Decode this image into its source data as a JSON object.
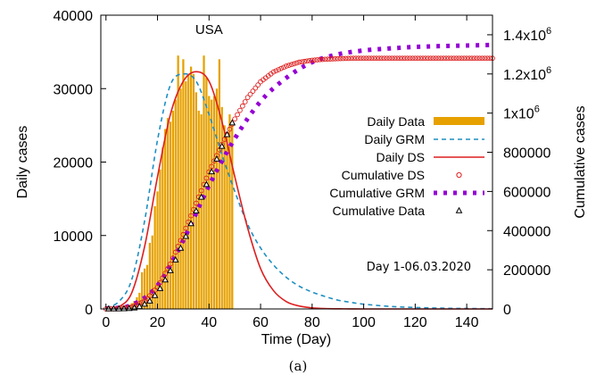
{
  "chart_data": {
    "type": "bar",
    "title": "USA",
    "annotation": "Day 1-06.03.2020",
    "caption": "(a)",
    "xlabel": "Time (Day)",
    "ylabel": "Daily cases",
    "y2label": "Cumulative cases",
    "xlim": [
      -2,
      150
    ],
    "ylim": [
      0,
      40000
    ],
    "y2lim": [
      0,
      1500000
    ],
    "x_ticks": [
      0,
      20,
      40,
      60,
      80,
      100,
      120,
      140
    ],
    "y_ticks": [
      0,
      10000,
      20000,
      30000,
      40000
    ],
    "y2_ticks": [
      {
        "value": 0,
        "label": "0"
      },
      {
        "value": 200000,
        "label": "200000"
      },
      {
        "value": 400000,
        "label": "400000"
      },
      {
        "value": 600000,
        "label": "600000"
      },
      {
        "value": 800000,
        "label": "800000"
      },
      {
        "value": 1000000,
        "label": "1x10",
        "exp": "6"
      },
      {
        "value": 1200000,
        "label": "1.2x10",
        "exp": "6"
      },
      {
        "value": 1400000,
        "label": "1.4x10",
        "exp": "6"
      }
    ],
    "grid": false,
    "legend_position": "center-right",
    "colors": {
      "daily_data": "#e6a100",
      "daily_grm": "#1f8fc2",
      "daily_ds": "#dd1f1f",
      "cumulative_ds": "#dd1f1f",
      "cumulative_grm": "#9400d3",
      "cumulative_data": "#000000"
    },
    "series": [
      {
        "name": "Daily Data",
        "axis": "left",
        "style": "bars",
        "x": [
          1,
          2,
          3,
          4,
          5,
          6,
          7,
          8,
          9,
          10,
          11,
          12,
          13,
          14,
          15,
          16,
          17,
          18,
          19,
          20,
          21,
          22,
          23,
          24,
          25,
          26,
          27,
          28,
          29,
          30,
          31,
          32,
          33,
          34,
          35,
          36,
          37,
          38,
          39,
          40,
          41,
          42,
          43,
          44,
          45,
          46,
          47,
          48,
          49
        ],
        "values": [
          50,
          80,
          100,
          120,
          150,
          200,
          300,
          400,
          500,
          800,
          1100,
          1600,
          2200,
          5000,
          5500,
          6000,
          9000,
          10000,
          14000,
          16000,
          19000,
          22000,
          24500,
          26000,
          25500,
          27000,
          28500,
          34500,
          30000,
          34000,
          31000,
          32000,
          33000,
          32000,
          29500,
          27000,
          26500,
          34500,
          31500,
          29000,
          28500,
          29000,
          30000,
          34000,
          27500,
          25000,
          24000,
          26500,
          25000
        ]
      },
      {
        "name": "Daily GRM",
        "axis": "left",
        "style": "dashed-line",
        "x": [
          0,
          5,
          10,
          15,
          20,
          25,
          30,
          35,
          40,
          45,
          50,
          55,
          60,
          65,
          70,
          75,
          80,
          85,
          90,
          95,
          100,
          110,
          120,
          130,
          140,
          150
        ],
        "values": [
          200,
          1000,
          4000,
          12000,
          23000,
          30500,
          32000,
          31000,
          26500,
          21000,
          16000,
          11500,
          8300,
          6000,
          4300,
          3100,
          2300,
          1700,
          1200,
          900,
          650,
          350,
          200,
          110,
          60,
          30
        ]
      },
      {
        "name": "Daily DS",
        "axis": "left",
        "style": "line",
        "x": [
          0,
          5,
          10,
          15,
          20,
          25,
          30,
          35,
          40,
          45,
          50,
          55,
          60,
          65,
          70,
          75,
          80,
          85,
          90,
          95,
          100,
          110,
          120,
          130,
          140,
          150
        ],
        "values": [
          0,
          300,
          2200,
          8500,
          18000,
          26500,
          31000,
          32300,
          31000,
          25500,
          18000,
          11000,
          5500,
          2500,
          1000,
          400,
          150,
          50,
          20,
          10,
          0,
          0,
          0,
          0,
          0,
          0
        ]
      },
      {
        "name": "Cumulative DS",
        "axis": "right",
        "style": "open-circles",
        "x": [
          0,
          5,
          10,
          15,
          20,
          25,
          30,
          35,
          40,
          45,
          50,
          55,
          60,
          65,
          70,
          75,
          80,
          85,
          90,
          95,
          100,
          105,
          110,
          115,
          120,
          125,
          130,
          135,
          140,
          145,
          150
        ],
        "values": [
          0,
          1000,
          10000,
          40000,
          110000,
          230000,
          380000,
          540000,
          700000,
          840000,
          970000,
          1080000,
          1160000,
          1210000,
          1240000,
          1260000,
          1270000,
          1275000,
          1278000,
          1280000,
          1280000,
          1280000,
          1280000,
          1280000,
          1280000,
          1280000,
          1280000,
          1280000,
          1280000,
          1280000,
          1280000
        ]
      },
      {
        "name": "Cumulative GRM",
        "axis": "right",
        "style": "thick-dashed",
        "x": [
          0,
          10,
          20,
          30,
          40,
          50,
          60,
          70,
          80,
          90,
          100,
          110,
          120,
          130,
          140,
          150
        ],
        "values": [
          2000,
          20000,
          120000,
          350000,
          630000,
          870000,
          1060000,
          1180000,
          1260000,
          1300000,
          1320000,
          1330000,
          1338000,
          1342000,
          1345000,
          1348000
        ]
      },
      {
        "name": "Cumulative Data",
        "axis": "right",
        "style": "triangles",
        "x": [
          1,
          3,
          5,
          7,
          9,
          11,
          13,
          15,
          17,
          19,
          21,
          23,
          25,
          27,
          29,
          31,
          33,
          35,
          37,
          39,
          41,
          43,
          45,
          47,
          49
        ],
        "values": [
          100,
          300,
          600,
          1000,
          2000,
          5000,
          12000,
          24000,
          40000,
          68000,
          104000,
          148000,
          195000,
          250000,
          310000,
          370000,
          435000,
          500000,
          570000,
          635000,
          700000,
          765000,
          830000,
          890000,
          950000
        ]
      }
    ]
  }
}
